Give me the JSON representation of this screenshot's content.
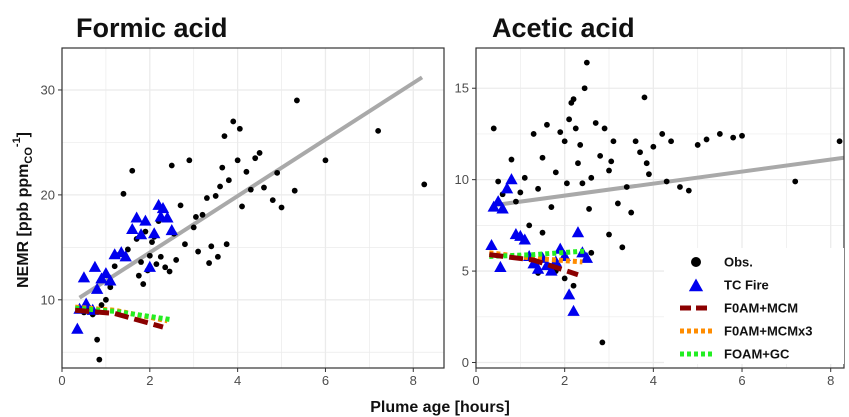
{
  "chart_data": {
    "type": "scatter",
    "xlabel": "Plume age [hours]",
    "ylabel_main": "NEMR [ppb ppm",
    "ylabel_sub": "CO",
    "ylabel_sup": "-1",
    "ylabel_end": "]",
    "colors": {
      "obs": "#000000",
      "tc": "#0000ee",
      "fit": "#a9a9a9",
      "mcm": "#8b0000",
      "mcmx3": "#ff8c00",
      "gc": "#22ee22",
      "grid": "#ebebeb",
      "border": "#333333"
    },
    "legend": [
      {
        "label": "Obs.",
        "kind": "point-circle",
        "color": "#000000"
      },
      {
        "label": "TC Fire",
        "kind": "point-triangle",
        "color": "#0000ee"
      },
      {
        "label": "F0AM+MCM",
        "kind": "dashed-line",
        "color": "#8b0000"
      },
      {
        "label": "F0AM+MCMx3",
        "kind": "dotted-line",
        "color": "#ff8c00"
      },
      {
        "label": "FOAM+GC",
        "kind": "dotted-line",
        "color": "#22ee22"
      }
    ],
    "panels": [
      {
        "title": "Formic acid",
        "xlim": [
          0,
          8.7
        ],
        "ylim": [
          3.5,
          34
        ],
        "xticks": [
          0,
          2,
          4,
          6,
          8
        ],
        "yticks": [
          10,
          20,
          30
        ],
        "fit": [
          [
            0.4,
            10.2
          ],
          [
            8.2,
            31.2
          ]
        ],
        "obs": [
          [
            0.5,
            8.8
          ],
          [
            0.6,
            9.3
          ],
          [
            0.7,
            8.6
          ],
          [
            0.8,
            6.2
          ],
          [
            0.85,
            4.3
          ],
          [
            0.9,
            9.5
          ],
          [
            1.0,
            10.0
          ],
          [
            1.1,
            11.2
          ],
          [
            1.2,
            13.2
          ],
          [
            1.3,
            14.3
          ],
          [
            1.4,
            20.1
          ],
          [
            1.5,
            14.8
          ],
          [
            1.6,
            22.3
          ],
          [
            1.7,
            15.8
          ],
          [
            1.75,
            12.3
          ],
          [
            1.8,
            13.6
          ],
          [
            1.85,
            11.5
          ],
          [
            1.9,
            16.5
          ],
          [
            1.95,
            12.8
          ],
          [
            2.0,
            14.2
          ],
          [
            2.05,
            15.5
          ],
          [
            2.1,
            16.0
          ],
          [
            2.15,
            13.4
          ],
          [
            2.2,
            17.5
          ],
          [
            2.25,
            14.1
          ],
          [
            2.3,
            18.6
          ],
          [
            2.35,
            13.1
          ],
          [
            2.4,
            17.8
          ],
          [
            2.45,
            12.7
          ],
          [
            2.5,
            22.8
          ],
          [
            2.55,
            16.3
          ],
          [
            2.6,
            13.8
          ],
          [
            2.7,
            19.0
          ],
          [
            2.8,
            15.3
          ],
          [
            2.9,
            23.3
          ],
          [
            3.0,
            16.9
          ],
          [
            3.05,
            17.9
          ],
          [
            3.1,
            14.6
          ],
          [
            3.2,
            18.1
          ],
          [
            3.3,
            19.7
          ],
          [
            3.35,
            13.5
          ],
          [
            3.4,
            15.1
          ],
          [
            3.5,
            19.9
          ],
          [
            3.55,
            14.1
          ],
          [
            3.6,
            20.8
          ],
          [
            3.65,
            22.6
          ],
          [
            3.7,
            25.6
          ],
          [
            3.75,
            15.3
          ],
          [
            3.8,
            21.4
          ],
          [
            3.9,
            27.0
          ],
          [
            4.0,
            23.3
          ],
          [
            4.05,
            26.3
          ],
          [
            4.1,
            18.9
          ],
          [
            4.2,
            22.2
          ],
          [
            4.3,
            20.5
          ],
          [
            4.4,
            23.5
          ],
          [
            4.5,
            24.0
          ],
          [
            4.6,
            20.7
          ],
          [
            4.8,
            19.5
          ],
          [
            4.9,
            22.1
          ],
          [
            5.0,
            18.8
          ],
          [
            5.3,
            20.4
          ],
          [
            5.35,
            29.0
          ],
          [
            6.0,
            23.3
          ],
          [
            7.2,
            26.1
          ],
          [
            8.25,
            21.0
          ]
        ],
        "tc": [
          [
            0.35,
            7.2
          ],
          [
            0.4,
            9.1
          ],
          [
            0.5,
            12.1
          ],
          [
            0.55,
            9.6
          ],
          [
            0.7,
            9.0
          ],
          [
            0.75,
            13.1
          ],
          [
            0.8,
            11.0
          ],
          [
            0.9,
            12.0
          ],
          [
            1.0,
            12.5
          ],
          [
            1.1,
            11.8
          ],
          [
            1.2,
            14.3
          ],
          [
            1.35,
            14.5
          ],
          [
            1.45,
            14.1
          ],
          [
            1.6,
            16.7
          ],
          [
            1.7,
            17.8
          ],
          [
            1.8,
            16.2
          ],
          [
            1.9,
            17.5
          ],
          [
            2.0,
            13.1
          ],
          [
            2.1,
            16.3
          ],
          [
            2.2,
            19.0
          ],
          [
            2.25,
            17.9
          ],
          [
            2.3,
            18.7
          ],
          [
            2.4,
            17.8
          ],
          [
            2.5,
            16.6
          ]
        ],
        "mcm": [
          [
            0.3,
            9.0
          ],
          [
            1.2,
            8.7
          ],
          [
            2.3,
            7.4
          ]
        ],
        "mcmx3": [
          [
            0.3,
            9.3
          ],
          [
            1.2,
            9.0
          ],
          [
            2.4,
            8.0
          ]
        ],
        "gc": [
          [
            0.3,
            9.2
          ],
          [
            1.2,
            8.9
          ],
          [
            2.5,
            8.1
          ]
        ]
      },
      {
        "title": "Acetic acid",
        "xlim": [
          0,
          8.3
        ],
        "ylim": [
          -0.3,
          17.2
        ],
        "xticks": [
          0,
          2,
          4,
          6,
          8
        ],
        "yticks": [
          0,
          5,
          10,
          15
        ],
        "fit": [
          [
            0.4,
            8.6
          ],
          [
            8.3,
            11.2
          ]
        ],
        "obs": [
          [
            0.4,
            12.8
          ],
          [
            0.5,
            9.9
          ],
          [
            0.6,
            9.2
          ],
          [
            0.8,
            11.1
          ],
          [
            0.9,
            8.8
          ],
          [
            1.0,
            9.3
          ],
          [
            1.1,
            10.1
          ],
          [
            1.2,
            7.5
          ],
          [
            1.3,
            12.5
          ],
          [
            1.4,
            9.5
          ],
          [
            1.5,
            11.2
          ],
          [
            1.6,
            13.0
          ],
          [
            1.7,
            8.5
          ],
          [
            1.8,
            10.4
          ],
          [
            1.9,
            12.6
          ],
          [
            2.0,
            12.1
          ],
          [
            2.05,
            9.8
          ],
          [
            2.1,
            13.3
          ],
          [
            2.15,
            14.2
          ],
          [
            2.2,
            14.4
          ],
          [
            2.25,
            12.8
          ],
          [
            2.3,
            10.9
          ],
          [
            2.35,
            11.9
          ],
          [
            2.4,
            9.8
          ],
          [
            2.45,
            15.0
          ],
          [
            2.5,
            16.4
          ],
          [
            2.55,
            8.4
          ],
          [
            2.6,
            10.1
          ],
          [
            2.7,
            13.1
          ],
          [
            2.8,
            11.3
          ],
          [
            2.9,
            12.8
          ],
          [
            3.0,
            10.5
          ],
          [
            3.05,
            11.0
          ],
          [
            3.1,
            12.1
          ],
          [
            3.2,
            8.7
          ],
          [
            3.3,
            6.3
          ],
          [
            3.4,
            9.6
          ],
          [
            3.5,
            8.2
          ],
          [
            3.6,
            12.1
          ],
          [
            3.7,
            11.5
          ],
          [
            3.8,
            14.5
          ],
          [
            3.85,
            10.9
          ],
          [
            3.9,
            10.3
          ],
          [
            4.0,
            11.8
          ],
          [
            4.2,
            12.5
          ],
          [
            4.3,
            9.9
          ],
          [
            4.4,
            12.1
          ],
          [
            4.6,
            9.6
          ],
          [
            4.8,
            9.4
          ],
          [
            5.0,
            11.9
          ],
          [
            5.2,
            12.2
          ],
          [
            5.5,
            12.5
          ],
          [
            5.8,
            12.3
          ],
          [
            6.0,
            12.4
          ],
          [
            7.2,
            9.9
          ],
          [
            8.2,
            12.1
          ],
          [
            2.6,
            6.0
          ],
          [
            3.0,
            7.0
          ],
          [
            2.85,
            1.1
          ],
          [
            1.8,
            5.0
          ],
          [
            2.2,
            4.2
          ],
          [
            1.5,
            7.1
          ],
          [
            1.4,
            4.9
          ],
          [
            2.0,
            4.6
          ]
        ],
        "tc": [
          [
            0.35,
            6.4
          ],
          [
            0.4,
            8.5
          ],
          [
            0.5,
            8.8
          ],
          [
            0.55,
            5.2
          ],
          [
            0.6,
            8.4
          ],
          [
            0.7,
            9.5
          ],
          [
            0.8,
            10.0
          ],
          [
            0.9,
            7.0
          ],
          [
            1.0,
            6.9
          ],
          [
            1.1,
            6.7
          ],
          [
            1.2,
            5.8
          ],
          [
            1.3,
            5.4
          ],
          [
            1.4,
            5.1
          ],
          [
            1.5,
            5.7
          ],
          [
            1.6,
            5.3
          ],
          [
            1.7,
            5.0
          ],
          [
            1.8,
            5.5
          ],
          [
            1.9,
            6.2
          ],
          [
            2.0,
            5.8
          ],
          [
            2.1,
            3.7
          ],
          [
            2.2,
            2.8
          ],
          [
            2.3,
            7.1
          ],
          [
            2.4,
            6.0
          ],
          [
            2.5,
            5.7
          ]
        ],
        "mcm": [
          [
            0.3,
            5.9
          ],
          [
            1.3,
            5.6
          ],
          [
            2.3,
            4.8
          ]
        ],
        "mcmx3": [
          [
            0.3,
            6.0
          ],
          [
            1.3,
            5.7
          ],
          [
            2.4,
            5.5
          ]
        ],
        "gc": [
          [
            0.3,
            5.8
          ],
          [
            1.3,
            5.9
          ],
          [
            2.5,
            6.1
          ]
        ]
      }
    ]
  }
}
